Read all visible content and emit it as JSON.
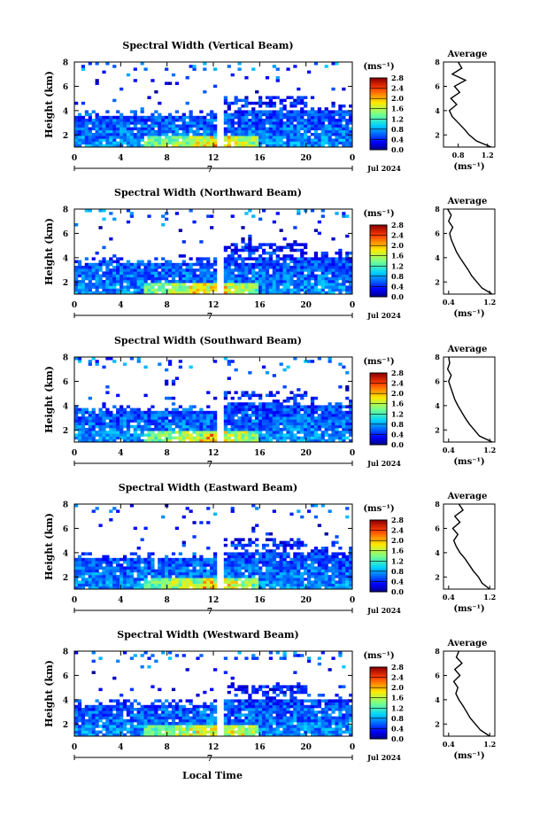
{
  "figure": {
    "xlabel": "Local Time",
    "date_label": "Jul 2024",
    "day_label": "7"
  },
  "chart_data": [
    {
      "type": "heatmap",
      "title": "Spectral Width (Vertical Beam)",
      "xlabel": "",
      "ylabel": "Height (km)",
      "x_ticks": [
        "0",
        "4",
        "8",
        "12",
        "16",
        "20",
        "0"
      ],
      "y_ticks": [
        "2",
        "4",
        "6",
        "8"
      ],
      "xlim": [
        0,
        24
      ],
      "ylim": [
        1,
        8
      ],
      "colorbar": {
        "unit": "(ms⁻¹)",
        "ticks": [
          "0.0",
          "0.4",
          "0.8",
          "1.2",
          "1.6",
          "2.0",
          "2.4",
          "2.8"
        ],
        "range": [
          0,
          2.8
        ]
      },
      "average_profile": {
        "title": "Average",
        "xlabel": "(ms⁻¹)",
        "x_ticks": [
          "0.8",
          "1.2"
        ],
        "xlim": [
          0.6,
          1.3
        ],
        "y_ticks": [
          "2",
          "4",
          "6",
          "8"
        ],
        "heights": [
          1.0,
          1.5,
          2.0,
          2.5,
          3.0,
          3.5,
          4.0,
          4.5,
          5.0,
          5.5,
          6.0,
          6.5,
          7.0,
          7.5,
          8.0
        ],
        "values": [
          1.25,
          1.05,
          0.95,
          0.88,
          0.8,
          0.72,
          0.68,
          0.78,
          0.7,
          0.82,
          0.75,
          0.9,
          0.72,
          0.85,
          0.8
        ]
      }
    },
    {
      "type": "heatmap",
      "title": "Spectral Width (Northward Beam)",
      "xlabel": "",
      "ylabel": "Height (km)",
      "x_ticks": [
        "0",
        "4",
        "8",
        "12",
        "16",
        "20",
        "0"
      ],
      "y_ticks": [
        "2",
        "4",
        "6",
        "8"
      ],
      "xlim": [
        0,
        24
      ],
      "ylim": [
        1,
        8
      ],
      "colorbar": {
        "unit": "(ms⁻¹)",
        "ticks": [
          "0.0",
          "0.4",
          "0.8",
          "1.2",
          "1.6",
          "2.0",
          "2.4",
          "2.8"
        ],
        "range": [
          0,
          2.8
        ]
      },
      "average_profile": {
        "title": "Average",
        "xlabel": "(ms⁻¹)",
        "x_ticks": [
          "0.4",
          "1.2"
        ],
        "xlim": [
          0.3,
          1.3
        ],
        "y_ticks": [
          "2",
          "4",
          "6",
          "8"
        ],
        "heights": [
          1.0,
          1.5,
          2.0,
          2.5,
          3.0,
          3.5,
          4.0,
          4.5,
          5.0,
          5.5,
          6.0,
          6.5,
          7.0,
          7.5,
          8.0
        ],
        "values": [
          1.25,
          1.05,
          0.95,
          0.85,
          0.78,
          0.7,
          0.62,
          0.55,
          0.5,
          0.45,
          0.42,
          0.48,
          0.4,
          0.45,
          0.38
        ]
      }
    },
    {
      "type": "heatmap",
      "title": "Spectral Width (Southward Beam)",
      "xlabel": "",
      "ylabel": "Height (km)",
      "x_ticks": [
        "0",
        "4",
        "8",
        "12",
        "16",
        "20",
        "0"
      ],
      "y_ticks": [
        "2",
        "4",
        "6",
        "8"
      ],
      "xlim": [
        0,
        24
      ],
      "ylim": [
        1,
        8
      ],
      "colorbar": {
        "unit": "(ms⁻¹)",
        "ticks": [
          "0.0",
          "0.4",
          "0.8",
          "1.2",
          "1.6",
          "2.0",
          "2.4",
          "2.8"
        ],
        "range": [
          0,
          2.8
        ]
      },
      "average_profile": {
        "title": "Average",
        "xlabel": "(ms⁻¹)",
        "x_ticks": [
          "0.4",
          "1.2"
        ],
        "xlim": [
          0.3,
          1.3
        ],
        "y_ticks": [
          "2",
          "4",
          "6",
          "8"
        ],
        "heights": [
          1.0,
          1.5,
          2.0,
          2.5,
          3.0,
          3.5,
          4.0,
          4.5,
          5.0,
          5.5,
          6.0,
          6.5,
          7.0,
          7.5,
          8.0
        ],
        "values": [
          1.25,
          1.0,
          0.9,
          0.8,
          0.72,
          0.65,
          0.58,
          0.52,
          0.48,
          0.44,
          0.4,
          0.45,
          0.38,
          0.42,
          0.4
        ]
      }
    },
    {
      "type": "heatmap",
      "title": "Spectral Width (Eastward Beam)",
      "xlabel": "",
      "ylabel": "Height (km)",
      "x_ticks": [
        "0",
        "4",
        "8",
        "12",
        "16",
        "20",
        "0"
      ],
      "y_ticks": [
        "2",
        "4",
        "6",
        "8"
      ],
      "xlim": [
        0,
        24
      ],
      "ylim": [
        1,
        8
      ],
      "colorbar": {
        "unit": "(ms⁻¹)",
        "ticks": [
          "0.0",
          "0.4",
          "0.8",
          "1.2",
          "1.6",
          "2.0",
          "2.4",
          "2.8"
        ],
        "range": [
          0,
          2.8
        ]
      },
      "average_profile": {
        "title": "Average",
        "xlabel": "(ms⁻¹)",
        "x_ticks": [
          "0.4",
          "1.2"
        ],
        "xlim": [
          0.3,
          1.3
        ],
        "y_ticks": [
          "2",
          "4",
          "6",
          "8"
        ],
        "heights": [
          1.0,
          1.5,
          2.0,
          2.5,
          3.0,
          3.5,
          4.0,
          4.5,
          5.0,
          5.5,
          6.0,
          6.5,
          7.0,
          7.5,
          8.0
        ],
        "values": [
          1.2,
          1.05,
          0.98,
          0.88,
          0.8,
          0.72,
          0.62,
          0.55,
          0.5,
          0.58,
          0.48,
          0.62,
          0.52,
          0.68,
          0.6
        ]
      }
    },
    {
      "type": "heatmap",
      "title": "Spectral Width (Westward Beam)",
      "xlabel": "",
      "ylabel": "Height (km)",
      "x_ticks": [
        "0",
        "4",
        "8",
        "12",
        "16",
        "20",
        "0"
      ],
      "y_ticks": [
        "2",
        "4",
        "6",
        "8"
      ],
      "xlim": [
        0,
        24
      ],
      "ylim": [
        1,
        8
      ],
      "colorbar": {
        "unit": "(ms⁻¹)",
        "ticks": [
          "0.0",
          "0.4",
          "0.8",
          "1.2",
          "1.6",
          "2.0",
          "2.4",
          "2.8"
        ],
        "range": [
          0,
          2.8
        ]
      },
      "average_profile": {
        "title": "Average",
        "xlabel": "(ms⁻¹)",
        "x_ticks": [
          "0.4",
          "1.2"
        ],
        "xlim": [
          0.3,
          1.3
        ],
        "y_ticks": [
          "2",
          "4",
          "6",
          "8"
        ],
        "heights": [
          1.0,
          1.5,
          2.0,
          2.5,
          3.0,
          3.5,
          4.0,
          4.5,
          5.0,
          5.5,
          6.0,
          6.5,
          7.0,
          7.5,
          8.0
        ],
        "values": [
          1.2,
          1.02,
          0.92,
          0.82,
          0.75,
          0.68,
          0.6,
          0.54,
          0.58,
          0.5,
          0.62,
          0.52,
          0.66,
          0.55,
          0.6
        ]
      }
    }
  ]
}
